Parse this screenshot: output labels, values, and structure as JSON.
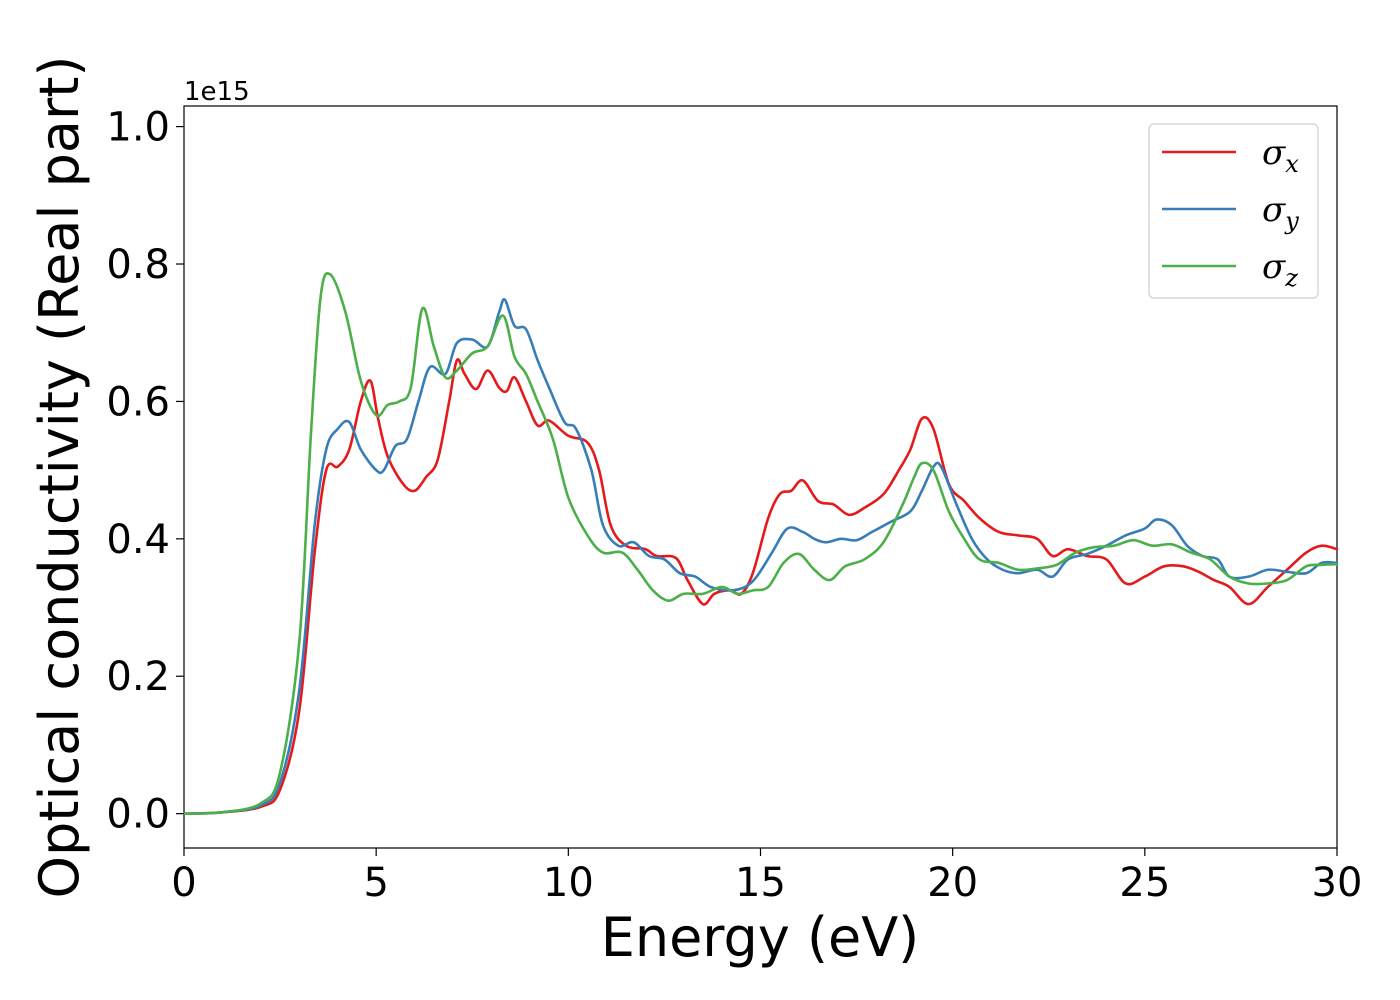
{
  "chart_data": {
    "type": "line",
    "xlabel": "Energy (eV)",
    "ylabel": "Optical conductivity (Real part)",
    "y_offset_text": "1e15",
    "xlim": [
      0,
      30
    ],
    "ylim": [
      -0.05,
      1.03
    ],
    "x_ticks": [
      0,
      5,
      10,
      15,
      20,
      25,
      30
    ],
    "x_tick_labels": [
      "0",
      "5",
      "10",
      "15",
      "20",
      "25",
      "30"
    ],
    "y_ticks": [
      0.0,
      0.2,
      0.4,
      0.6,
      0.8,
      1.0
    ],
    "y_tick_labels": [
      "0.0",
      "0.2",
      "0.4",
      "0.6",
      "0.8",
      "1.0"
    ],
    "legend_position": "top-right",
    "series": [
      {
        "name": "σ",
        "subscript": "x",
        "color": "#e41a1c",
        "points": [
          [
            0,
            0
          ],
          [
            1,
            0.002
          ],
          [
            2,
            0.01
          ],
          [
            2.5,
            0.035
          ],
          [
            3,
            0.15
          ],
          [
            3.4,
            0.38
          ],
          [
            3.7,
            0.5
          ],
          [
            4,
            0.505
          ],
          [
            4.3,
            0.53
          ],
          [
            4.6,
            0.6
          ],
          [
            4.85,
            0.63
          ],
          [
            5.05,
            0.575
          ],
          [
            5.3,
            0.52
          ],
          [
            5.7,
            0.48
          ],
          [
            6,
            0.47
          ],
          [
            6.3,
            0.49
          ],
          [
            6.6,
            0.515
          ],
          [
            6.9,
            0.6
          ],
          [
            7.1,
            0.66
          ],
          [
            7.3,
            0.64
          ],
          [
            7.6,
            0.618
          ],
          [
            7.9,
            0.645
          ],
          [
            8.2,
            0.62
          ],
          [
            8.4,
            0.615
          ],
          [
            8.6,
            0.635
          ],
          [
            8.9,
            0.6
          ],
          [
            9.2,
            0.565
          ],
          [
            9.5,
            0.572
          ],
          [
            10,
            0.55
          ],
          [
            10.5,
            0.54
          ],
          [
            10.8,
            0.5
          ],
          [
            11.1,
            0.42
          ],
          [
            11.5,
            0.39
          ],
          [
            12,
            0.385
          ],
          [
            12.3,
            0.375
          ],
          [
            12.8,
            0.372
          ],
          [
            13.1,
            0.34
          ],
          [
            13.5,
            0.305
          ],
          [
            13.8,
            0.32
          ],
          [
            14.2,
            0.325
          ],
          [
            14.5,
            0.32
          ],
          [
            14.8,
            0.35
          ],
          [
            15.2,
            0.43
          ],
          [
            15.5,
            0.465
          ],
          [
            15.8,
            0.47
          ],
          [
            16.1,
            0.485
          ],
          [
            16.5,
            0.455
          ],
          [
            16.9,
            0.45
          ],
          [
            17.3,
            0.435
          ],
          [
            17.7,
            0.445
          ],
          [
            18.2,
            0.465
          ],
          [
            18.6,
            0.5
          ],
          [
            18.9,
            0.53
          ],
          [
            19.2,
            0.575
          ],
          [
            19.5,
            0.56
          ],
          [
            19.9,
            0.48
          ],
          [
            20.3,
            0.455
          ],
          [
            20.7,
            0.43
          ],
          [
            21.2,
            0.41
          ],
          [
            21.7,
            0.405
          ],
          [
            22.2,
            0.4
          ],
          [
            22.6,
            0.375
          ],
          [
            23,
            0.385
          ],
          [
            23.5,
            0.375
          ],
          [
            24,
            0.37
          ],
          [
            24.5,
            0.335
          ],
          [
            25,
            0.345
          ],
          [
            25.5,
            0.36
          ],
          [
            26,
            0.36
          ],
          [
            26.4,
            0.352
          ],
          [
            26.8,
            0.34
          ],
          [
            27.2,
            0.33
          ],
          [
            27.7,
            0.305
          ],
          [
            28.2,
            0.33
          ],
          [
            28.7,
            0.355
          ],
          [
            29.2,
            0.38
          ],
          [
            29.6,
            0.39
          ],
          [
            30,
            0.385
          ]
        ]
      },
      {
        "name": "σ",
        "subscript": "y",
        "color": "#377eb8",
        "points": [
          [
            0,
            0
          ],
          [
            1,
            0.002
          ],
          [
            2,
            0.012
          ],
          [
            2.5,
            0.045
          ],
          [
            3,
            0.18
          ],
          [
            3.4,
            0.42
          ],
          [
            3.7,
            0.53
          ],
          [
            4,
            0.56
          ],
          [
            4.3,
            0.57
          ],
          [
            4.6,
            0.53
          ],
          [
            5,
            0.5
          ],
          [
            5.2,
            0.5
          ],
          [
            5.5,
            0.535
          ],
          [
            5.8,
            0.545
          ],
          [
            6.1,
            0.6
          ],
          [
            6.4,
            0.65
          ],
          [
            6.8,
            0.64
          ],
          [
            7.1,
            0.685
          ],
          [
            7.5,
            0.69
          ],
          [
            7.9,
            0.68
          ],
          [
            8.2,
            0.73
          ],
          [
            8.35,
            0.748
          ],
          [
            8.6,
            0.71
          ],
          [
            8.9,
            0.705
          ],
          [
            9.2,
            0.66
          ],
          [
            9.5,
            0.62
          ],
          [
            9.9,
            0.57
          ],
          [
            10.2,
            0.56
          ],
          [
            10.6,
            0.5
          ],
          [
            10.9,
            0.42
          ],
          [
            11.3,
            0.39
          ],
          [
            11.7,
            0.395
          ],
          [
            12.1,
            0.375
          ],
          [
            12.5,
            0.37
          ],
          [
            12.9,
            0.35
          ],
          [
            13.3,
            0.345
          ],
          [
            13.7,
            0.33
          ],
          [
            14.2,
            0.325
          ],
          [
            14.6,
            0.33
          ],
          [
            14.9,
            0.345
          ],
          [
            15.3,
            0.38
          ],
          [
            15.7,
            0.415
          ],
          [
            16.1,
            0.41
          ],
          [
            16.4,
            0.4
          ],
          [
            16.7,
            0.395
          ],
          [
            17.1,
            0.4
          ],
          [
            17.5,
            0.398
          ],
          [
            17.9,
            0.41
          ],
          [
            18.4,
            0.425
          ],
          [
            18.9,
            0.44
          ],
          [
            19.2,
            0.47
          ],
          [
            19.5,
            0.505
          ],
          [
            19.7,
            0.505
          ],
          [
            20.1,
            0.45
          ],
          [
            20.5,
            0.4
          ],
          [
            20.9,
            0.37
          ],
          [
            21.3,
            0.355
          ],
          [
            21.7,
            0.35
          ],
          [
            22.2,
            0.355
          ],
          [
            22.6,
            0.345
          ],
          [
            23,
            0.37
          ],
          [
            23.5,
            0.378
          ],
          [
            24,
            0.39
          ],
          [
            24.5,
            0.405
          ],
          [
            25,
            0.415
          ],
          [
            25.3,
            0.428
          ],
          [
            25.7,
            0.42
          ],
          [
            26.1,
            0.39
          ],
          [
            26.5,
            0.375
          ],
          [
            26.9,
            0.37
          ],
          [
            27.2,
            0.345
          ],
          [
            27.7,
            0.345
          ],
          [
            28.2,
            0.355
          ],
          [
            28.7,
            0.352
          ],
          [
            29.2,
            0.35
          ],
          [
            29.6,
            0.365
          ],
          [
            30,
            0.365
          ]
        ]
      },
      {
        "name": "σ",
        "subscript": "z",
        "color": "#4daf4a",
        "points": [
          [
            0,
            0
          ],
          [
            1,
            0.002
          ],
          [
            2,
            0.015
          ],
          [
            2.5,
            0.06
          ],
          [
            3,
            0.25
          ],
          [
            3.3,
            0.55
          ],
          [
            3.55,
            0.75
          ],
          [
            3.8,
            0.785
          ],
          [
            4.2,
            0.73
          ],
          [
            4.6,
            0.63
          ],
          [
            5,
            0.58
          ],
          [
            5.3,
            0.595
          ],
          [
            5.6,
            0.6
          ],
          [
            5.9,
            0.62
          ],
          [
            6.2,
            0.735
          ],
          [
            6.5,
            0.68
          ],
          [
            6.8,
            0.635
          ],
          [
            7.1,
            0.645
          ],
          [
            7.5,
            0.67
          ],
          [
            7.9,
            0.68
          ],
          [
            8.3,
            0.725
          ],
          [
            8.6,
            0.665
          ],
          [
            8.9,
            0.64
          ],
          [
            9.2,
            0.6
          ],
          [
            9.6,
            0.545
          ],
          [
            10,
            0.46
          ],
          [
            10.5,
            0.405
          ],
          [
            10.9,
            0.38
          ],
          [
            11.4,
            0.38
          ],
          [
            11.8,
            0.355
          ],
          [
            12.2,
            0.325
          ],
          [
            12.6,
            0.31
          ],
          [
            13,
            0.32
          ],
          [
            13.5,
            0.32
          ],
          [
            14,
            0.33
          ],
          [
            14.4,
            0.32
          ],
          [
            14.8,
            0.325
          ],
          [
            15.2,
            0.33
          ],
          [
            15.6,
            0.365
          ],
          [
            16,
            0.378
          ],
          [
            16.4,
            0.355
          ],
          [
            16.8,
            0.34
          ],
          [
            17.2,
            0.36
          ],
          [
            17.7,
            0.37
          ],
          [
            18.2,
            0.395
          ],
          [
            18.7,
            0.45
          ],
          [
            19,
            0.49
          ],
          [
            19.2,
            0.51
          ],
          [
            19.5,
            0.5
          ],
          [
            19.9,
            0.44
          ],
          [
            20.3,
            0.4
          ],
          [
            20.7,
            0.37
          ],
          [
            21.2,
            0.365
          ],
          [
            21.7,
            0.355
          ],
          [
            22.2,
            0.357
          ],
          [
            22.7,
            0.362
          ],
          [
            23.2,
            0.38
          ],
          [
            23.7,
            0.388
          ],
          [
            24.2,
            0.39
          ],
          [
            24.7,
            0.398
          ],
          [
            25.2,
            0.39
          ],
          [
            25.7,
            0.392
          ],
          [
            26.2,
            0.38
          ],
          [
            26.7,
            0.37
          ],
          [
            27.2,
            0.345
          ],
          [
            27.7,
            0.335
          ],
          [
            28.2,
            0.335
          ],
          [
            28.7,
            0.34
          ],
          [
            29.2,
            0.36
          ],
          [
            29.6,
            0.362
          ],
          [
            30,
            0.363
          ]
        ]
      }
    ]
  }
}
